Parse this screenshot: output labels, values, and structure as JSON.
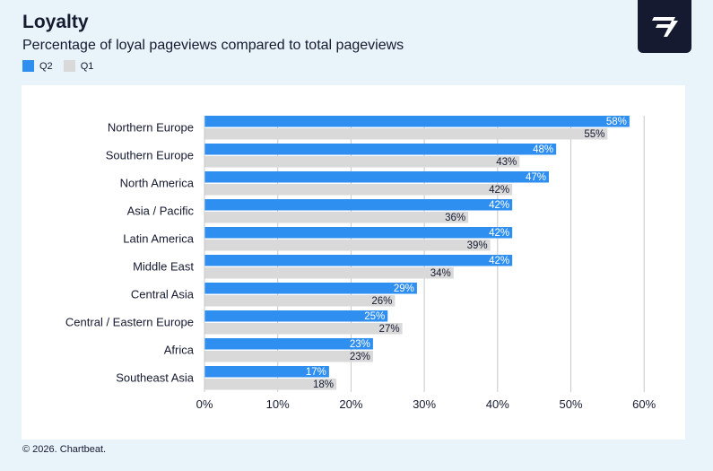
{
  "header": {
    "title": "Loyalty",
    "subtitle": "Percentage of loyal pageviews compared to total pageviews"
  },
  "footer": {
    "copyright": "© 2026. Chartbeat."
  },
  "logo": {
    "icon": "chartbeat-logo-icon"
  },
  "colors": {
    "q2": "#2f8ff0",
    "q1": "#d9d9d9",
    "gridline": "#c8c8c8",
    "text": "#151a30"
  },
  "chart_data": {
    "type": "bar",
    "orientation": "horizontal",
    "categories": [
      "Northern Europe",
      "Southern Europe",
      "North America",
      "Asia / Pacific",
      "Latin America",
      "Middle East",
      "Central Asia",
      "Central / Eastern Europe",
      "Africa",
      "Southeast Asia"
    ],
    "series": [
      {
        "name": "Q2",
        "values": [
          58,
          48,
          47,
          42,
          42,
          42,
          29,
          25,
          23,
          17
        ]
      },
      {
        "name": "Q1",
        "values": [
          55,
          43,
          42,
          36,
          39,
          34,
          26,
          27,
          23,
          18
        ]
      }
    ],
    "value_suffix": "%",
    "xlim": [
      0,
      60
    ],
    "xticks": [
      0,
      10,
      20,
      30,
      40,
      50,
      60
    ],
    "xtick_labels": [
      "0%",
      "10%",
      "20%",
      "30%",
      "40%",
      "50%",
      "60%"
    ],
    "grid": true,
    "legend_position": "top-left"
  }
}
